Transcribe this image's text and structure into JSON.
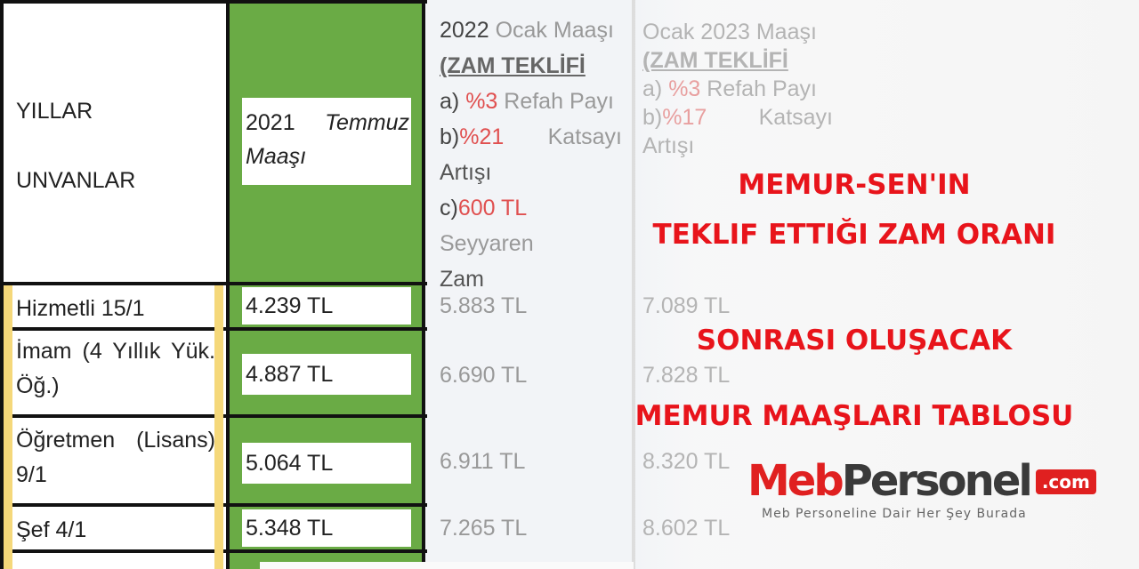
{
  "table": {
    "header": {
      "col1": [
        "YILLAR",
        "UNVANLAR"
      ],
      "col2": {
        "year": "2021",
        "month": "Temmuz",
        "word": "Maaşı"
      },
      "col3": {
        "title_a": "2022",
        "title_b": "Ocak Maaşı",
        "subtitle": "(ZAM TEKLİFİ",
        "a_label": "a)",
        "a_value": "%3",
        "a_text": "Refah Payı",
        "b_label": "b)",
        "b_value": "%21",
        "b_text": "Katsayı",
        "b_text2": "Artışı",
        "c_label": "c)",
        "c_value": "600 TL",
        "c_text": "Seyyaren",
        "c_text2": "Zam"
      },
      "col4": {
        "title": "Ocak 2023 Maaşı",
        "subtitle": "(ZAM TEKLİFİ",
        "a_label": "a)",
        "a_value": "%3",
        "a_text": "Refah Payı",
        "b_label": "b)",
        "b_value": "%17",
        "b_text": "Katsayı",
        "b_text2": "Artışı"
      }
    },
    "rows": [
      {
        "title": "Hizmetli 15/1",
        "s2021": "4.239 TL",
        "s2022": "5.883 TL",
        "s2023": "7.089 TL"
      },
      {
        "title": "İmam (4 Yıllık Yük. Öğ.)",
        "s2021": "4.887 TL",
        "s2022": "6.690 TL",
        "s2023": "7.828 TL"
      },
      {
        "title": "Öğretmen (Lisans) 9/1",
        "s2021": "5.064 TL",
        "s2022": "6.911 TL",
        "s2023": "8.320 TL"
      },
      {
        "title": "Şef 4/1",
        "s2021": "5.348 TL",
        "s2022": "7.265 TL",
        "s2023": "8.602 TL"
      }
    ]
  },
  "headline": [
    "MEMUR-SEN'IN",
    "TEKLIF ETTIĞI ZAM ORANI",
    "SONRASI OLUŞACAK",
    "MEMUR MAAŞLARI TABLOSU"
  ],
  "logo": {
    "part1": "Meb",
    "part2": "Personel",
    "badge": ".com",
    "tagline": "Meb Personeline Dair Her Şey Burada"
  },
  "colors": {
    "headline": "#e8141b",
    "green": "#6aab45",
    "logo_red": "#e02020",
    "logo_dark": "#3a3a3a"
  }
}
